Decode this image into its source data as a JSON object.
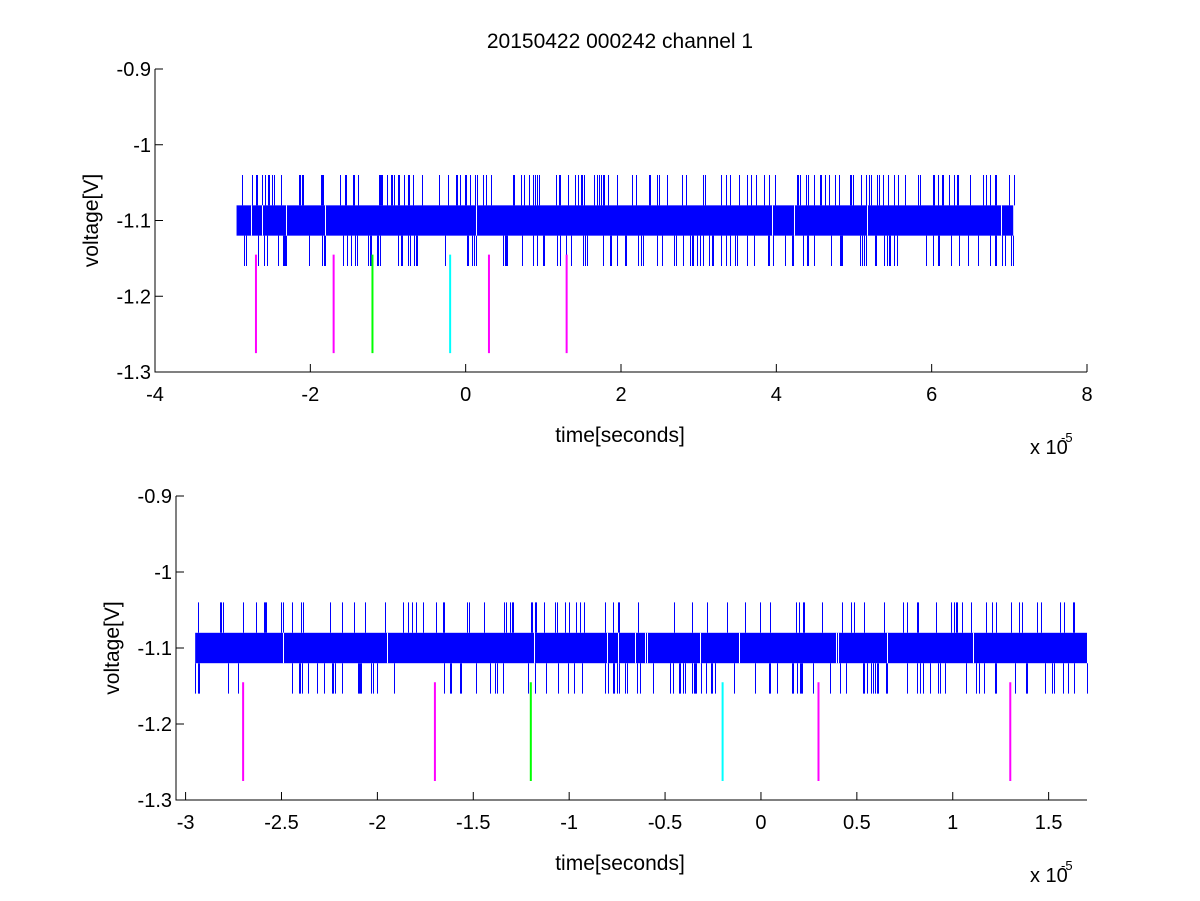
{
  "figure_title": "20150422 000242 channel 1",
  "chart_data": [
    {
      "type": "line",
      "title": "20150422 000242 channel 1",
      "xlabel": "time[seconds]",
      "ylabel": "voltage[V]",
      "x_multiplier": "x 10",
      "x_exponent": "-5",
      "xlim": [
        -4,
        8
      ],
      "ylim": [
        -1.3,
        -0.9
      ],
      "xticks": [
        -4,
        -2,
        0,
        2,
        4,
        6,
        8
      ],
      "xtick_labels": [
        "-4",
        "-2",
        "0",
        "2",
        "4",
        "6",
        "8"
      ],
      "yticks": [
        -1.3,
        -1.2,
        -1.1,
        -1.0,
        -0.9
      ],
      "ytick_labels": [
        "-1.3",
        "-1.2",
        "-1.1",
        "-1",
        "-0.9"
      ],
      "grid": false,
      "series": [
        {
          "kind": "signal",
          "color": "#0000ff",
          "x_range": [
            -2.95,
            7.05
          ],
          "band": [
            -1.12,
            -1.08
          ],
          "spike_levels": [
            -1.16,
            -1.04
          ],
          "spike_density": 0.16
        }
      ],
      "markers": [
        {
          "x": -2.7,
          "y": [
            -1.145,
            -1.275
          ],
          "color": "#ff00ff"
        },
        {
          "x": -1.7,
          "y": [
            -1.145,
            -1.275
          ],
          "color": "#ff00ff"
        },
        {
          "x": -1.2,
          "y": [
            -1.145,
            -1.275
          ],
          "color": "#00ff00"
        },
        {
          "x": -0.2,
          "y": [
            -1.145,
            -1.275
          ],
          "color": "#00ffff"
        },
        {
          "x": 0.3,
          "y": [
            -1.145,
            -1.275
          ],
          "color": "#ff00ff"
        },
        {
          "x": 1.3,
          "y": [
            -1.145,
            -1.275
          ],
          "color": "#ff00ff"
        }
      ]
    },
    {
      "type": "line",
      "title": "",
      "xlabel": "time[seconds]",
      "ylabel": "voltage[V]",
      "x_multiplier": "x 10",
      "x_exponent": "-5",
      "xlim": [
        -3.05,
        1.7
      ],
      "ylim": [
        -1.3,
        -0.9
      ],
      "xticks": [
        -3,
        -2.5,
        -2,
        -1.5,
        -1,
        -0.5,
        0,
        0.5,
        1,
        1.5
      ],
      "xtick_labels": [
        "-3",
        "-2.5",
        "-2",
        "-1.5",
        "-1",
        "-0.5",
        "0",
        "0.5",
        "1",
        "1.5"
      ],
      "yticks": [
        -1.3,
        -1.2,
        -1.1,
        -1.0,
        -0.9
      ],
      "ytick_labels": [
        "-1.3",
        "-1.2",
        "-1.1",
        "-1",
        "-0.9"
      ],
      "grid": false,
      "series": [
        {
          "kind": "signal",
          "color": "#0000ff",
          "x_range": [
            -2.95,
            1.7
          ],
          "band": [
            -1.12,
            -1.08
          ],
          "spike_levels": [
            -1.16,
            -1.04
          ],
          "spike_density": 0.12
        }
      ],
      "markers": [
        {
          "x": -2.7,
          "y": [
            -1.145,
            -1.275
          ],
          "color": "#ff00ff"
        },
        {
          "x": -1.7,
          "y": [
            -1.145,
            -1.275
          ],
          "color": "#ff00ff"
        },
        {
          "x": -1.2,
          "y": [
            -1.145,
            -1.275
          ],
          "color": "#00ff00"
        },
        {
          "x": -0.2,
          "y": [
            -1.145,
            -1.275
          ],
          "color": "#00ffff"
        },
        {
          "x": 0.3,
          "y": [
            -1.145,
            -1.275
          ],
          "color": "#ff00ff"
        },
        {
          "x": 1.3,
          "y": [
            -1.145,
            -1.275
          ],
          "color": "#ff00ff"
        }
      ]
    }
  ]
}
